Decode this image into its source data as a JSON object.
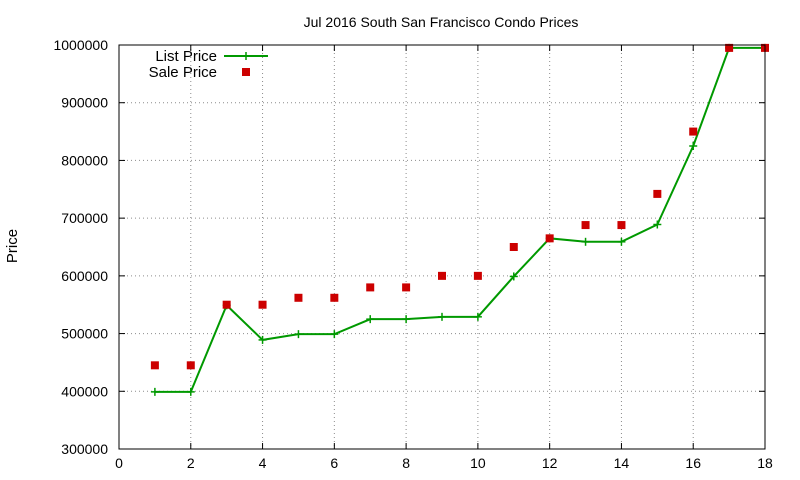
{
  "chart_data": {
    "type": "line",
    "title": "Jul 2016 South San Francisco Condo Prices",
    "xlabel": "",
    "ylabel": "Price",
    "xlim": [
      0,
      18
    ],
    "ylim": [
      300000,
      1000000
    ],
    "x_ticks": [
      0,
      2,
      4,
      6,
      8,
      10,
      12,
      14,
      16,
      18
    ],
    "y_ticks": [
      300000,
      400000,
      500000,
      600000,
      700000,
      800000,
      900000,
      1000000
    ],
    "grid": true,
    "legend_position": "top-left",
    "series": [
      {
        "name": "List Price",
        "style": "linespoints",
        "marker": "plus",
        "color": "#009900",
        "x": [
          1,
          2,
          3,
          4,
          5,
          6,
          7,
          8,
          9,
          10,
          11,
          12,
          13,
          14,
          15,
          16,
          17,
          18
        ],
        "y": [
          399000,
          399000,
          549000,
          489000,
          499000,
          499000,
          525000,
          525000,
          529000,
          529000,
          599000,
          665000,
          659000,
          659000,
          689000,
          825000,
          995000,
          995000
        ]
      },
      {
        "name": "Sale Price",
        "style": "points",
        "marker": "square",
        "color": "#cc0000",
        "x": [
          1,
          2,
          3,
          4,
          5,
          6,
          7,
          8,
          9,
          10,
          11,
          12,
          13,
          14,
          15,
          16,
          17,
          18
        ],
        "y": [
          445000,
          445000,
          550000,
          550000,
          562000,
          562000,
          580000,
          580000,
          600000,
          600000,
          650000,
          665000,
          688000,
          688000,
          742000,
          850000,
          995000,
          995000
        ]
      }
    ]
  }
}
